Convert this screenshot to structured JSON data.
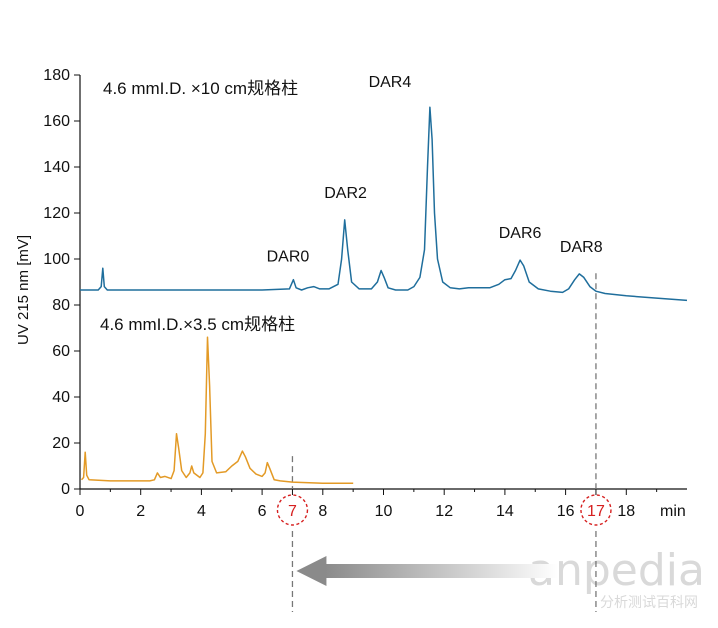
{
  "chart_data": {
    "type": "line",
    "title": "",
    "xlabel": "min",
    "ylabel": "UV 215 nm [mV]",
    "xlim": [
      0,
      20
    ],
    "ylim": [
      0,
      180
    ],
    "xticks": [
      0,
      2,
      4,
      6,
      7,
      8,
      10,
      12,
      14,
      16,
      17,
      18
    ],
    "yticks": [
      0,
      20,
      40,
      60,
      80,
      100,
      120,
      140,
      160,
      180
    ],
    "grid": false,
    "series": [
      {
        "name": "4.6 mmI.D. ×10 cm规格柱",
        "color": "#1f6e9c",
        "points": [
          [
            0,
            86.5
          ],
          [
            0.6,
            86.5
          ],
          [
            0.7,
            88
          ],
          [
            0.75,
            96
          ],
          [
            0.8,
            88
          ],
          [
            0.9,
            86.5
          ],
          [
            3,
            86.5
          ],
          [
            6,
            86.5
          ],
          [
            6.9,
            87
          ],
          [
            7.03,
            91
          ],
          [
            7.12,
            87.5
          ],
          [
            7.3,
            86.5
          ],
          [
            7.5,
            87.5
          ],
          [
            7.7,
            88
          ],
          [
            7.9,
            87
          ],
          [
            8.2,
            87
          ],
          [
            8.5,
            89
          ],
          [
            8.62,
            100
          ],
          [
            8.72,
            117
          ],
          [
            8.82,
            104
          ],
          [
            8.95,
            90
          ],
          [
            9.2,
            87
          ],
          [
            9.6,
            87
          ],
          [
            9.8,
            90
          ],
          [
            9.92,
            95
          ],
          [
            10.02,
            92
          ],
          [
            10.15,
            87.5
          ],
          [
            10.4,
            86.5
          ],
          [
            10.8,
            86.5
          ],
          [
            11,
            88
          ],
          [
            11.2,
            92
          ],
          [
            11.35,
            104
          ],
          [
            11.45,
            140
          ],
          [
            11.53,
            166
          ],
          [
            11.6,
            152
          ],
          [
            11.68,
            120
          ],
          [
            11.78,
            100
          ],
          [
            11.95,
            90
          ],
          [
            12.2,
            87.5
          ],
          [
            12.5,
            87
          ],
          [
            12.8,
            87.5
          ],
          [
            13,
            87.5
          ],
          [
            13.5,
            87.5
          ],
          [
            13.8,
            89
          ],
          [
            14,
            91
          ],
          [
            14.2,
            91.5
          ],
          [
            14.35,
            95
          ],
          [
            14.5,
            99.5
          ],
          [
            14.62,
            97
          ],
          [
            14.8,
            90
          ],
          [
            15.1,
            87
          ],
          [
            15.5,
            86
          ],
          [
            15.9,
            85.5
          ],
          [
            16.1,
            87
          ],
          [
            16.3,
            91
          ],
          [
            16.45,
            93.5
          ],
          [
            16.6,
            92
          ],
          [
            16.8,
            88
          ],
          [
            17.0,
            86
          ],
          [
            17.3,
            85
          ],
          [
            18,
            84
          ],
          [
            19,
            83
          ],
          [
            20,
            82
          ]
        ]
      },
      {
        "name": "4.6 mmI.D.×3.5 cm规格柱",
        "color": "#e39a26",
        "points": [
          [
            0.05,
            4
          ],
          [
            0.12,
            5
          ],
          [
            0.17,
            16
          ],
          [
            0.22,
            6
          ],
          [
            0.3,
            4
          ],
          [
            1,
            3.5
          ],
          [
            2.3,
            3.5
          ],
          [
            2.45,
            4
          ],
          [
            2.55,
            7
          ],
          [
            2.65,
            5
          ],
          [
            2.8,
            5.5
          ],
          [
            3,
            4.5
          ],
          [
            3.1,
            8
          ],
          [
            3.18,
            24
          ],
          [
            3.25,
            18
          ],
          [
            3.35,
            8
          ],
          [
            3.5,
            5
          ],
          [
            3.62,
            7
          ],
          [
            3.68,
            10
          ],
          [
            3.75,
            7
          ],
          [
            3.95,
            5
          ],
          [
            4.05,
            7
          ],
          [
            4.13,
            24
          ],
          [
            4.2,
            66
          ],
          [
            4.27,
            45
          ],
          [
            4.35,
            12
          ],
          [
            4.5,
            7
          ],
          [
            4.8,
            7.5
          ],
          [
            5.0,
            10
          ],
          [
            5.2,
            12
          ],
          [
            5.35,
            16.5
          ],
          [
            5.45,
            14
          ],
          [
            5.6,
            9
          ],
          [
            5.8,
            6.5
          ],
          [
            6.0,
            5.5
          ],
          [
            6.1,
            7
          ],
          [
            6.17,
            11.5
          ],
          [
            6.25,
            9
          ],
          [
            6.4,
            4
          ],
          [
            6.6,
            3.5
          ],
          [
            7,
            3
          ],
          [
            8,
            2.5
          ],
          [
            9,
            2.5
          ]
        ]
      }
    ],
    "annotations": {
      "peak_labels": [
        {
          "text": "DAR0",
          "x": 7.05,
          "y": 91
        },
        {
          "text": "DAR2",
          "x": 8.75,
          "y": 117
        },
        {
          "text": "DAR4",
          "x": 11.53,
          "y": 166
        },
        {
          "text": "DAR6",
          "x": 14.5,
          "y": 99.5
        },
        {
          "text": "DAR8",
          "x": 16.45,
          "y": 93.5
        }
      ],
      "dashed_markers": [
        7,
        17
      ],
      "circled_ticks": [
        7,
        17
      ],
      "arrow": {
        "from": 17,
        "to": 7,
        "color": "#808080"
      }
    }
  },
  "watermark": {
    "text": "anpedia",
    "sub": "分析测试百科网"
  }
}
